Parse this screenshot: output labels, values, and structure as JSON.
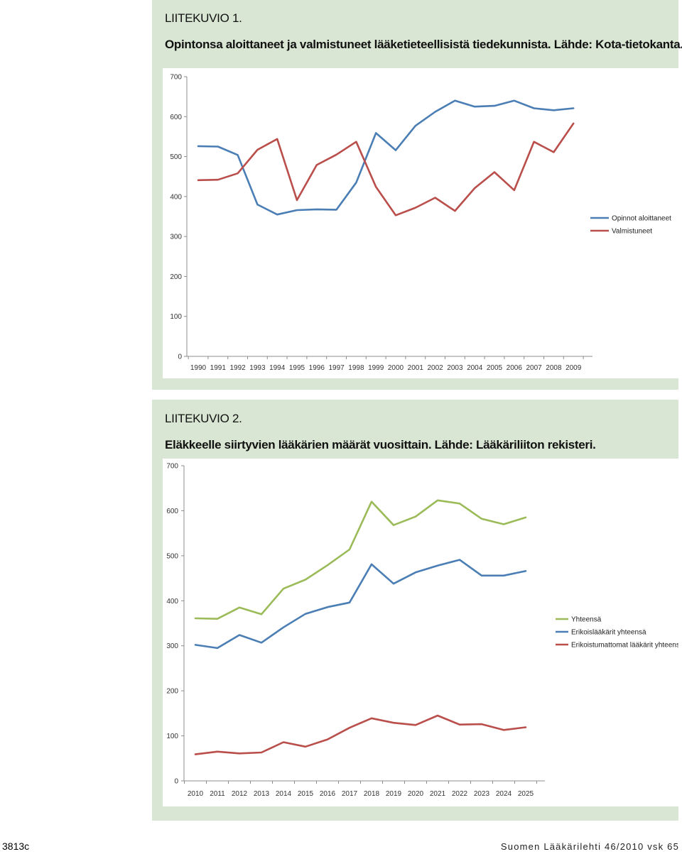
{
  "figures": [
    {
      "label": "LIITEKUVIO 1.",
      "caption": "Opintonsa aloittaneet ja valmistuneet lääketieteellisistä tiedekunnista. Lähde: Kota-tietokanta."
    },
    {
      "label": "LIITEKUVIO 2.",
      "caption": "Eläkkeelle siirtyvien lääkärien määrät vuosittain. Lähde: Lääkäriliiton rekisteri."
    }
  ],
  "chart_data": [
    {
      "type": "line",
      "title": "",
      "xlabel": "",
      "ylabel": "",
      "categories": [
        "1990",
        "1991",
        "1992",
        "1993",
        "1994",
        "1995",
        "1996",
        "1997",
        "1998",
        "1999",
        "2000",
        "2001",
        "2002",
        "2003",
        "2004",
        "2005",
        "2006",
        "2007",
        "2008",
        "2009"
      ],
      "ylim": [
        0,
        700
      ],
      "yticks": [
        "0",
        "100",
        "200",
        "300",
        "400",
        "500",
        "600",
        "700"
      ],
      "grid": false,
      "legend_position": "right",
      "series": [
        {
          "name": "Opinnot aloittaneet",
          "color": "#4a7eb4",
          "values": [
            526,
            525,
            504,
            380,
            355,
            366,
            368,
            367,
            435,
            559,
            516,
            577,
            612,
            640,
            625,
            627,
            640,
            621,
            616,
            621
          ]
        },
        {
          "name": "Valmistuneet",
          "color": "#b94e4b",
          "values": [
            441,
            442,
            458,
            517,
            544,
            391,
            479,
            505,
            537,
            424,
            353,
            372,
            397,
            364,
            421,
            461,
            416,
            537,
            511,
            583
          ]
        }
      ]
    },
    {
      "type": "line",
      "title": "",
      "xlabel": "",
      "ylabel": "",
      "categories": [
        "2010",
        "2011",
        "2012",
        "2013",
        "2014",
        "2015",
        "2016",
        "2017",
        "2018",
        "2019",
        "2020",
        "2021",
        "2022",
        "2023",
        "2024",
        "2025"
      ],
      "ylim": [
        0,
        700
      ],
      "yticks": [
        "0",
        "100",
        "200",
        "300",
        "400",
        "500",
        "600",
        "700"
      ],
      "grid": false,
      "legend_position": "right",
      "series": [
        {
          "name": "Yhteensä",
          "color": "#9bbb59",
          "values": [
            361,
            360,
            385,
            370,
            427,
            447,
            479,
            514,
            620,
            568,
            587,
            623,
            616,
            582,
            570,
            585
          ]
        },
        {
          "name": "Erikoislääkärit yhteensä",
          "color": "#4a7eb4",
          "values": [
            302,
            295,
            324,
            307,
            341,
            371,
            386,
            396,
            481,
            438,
            463,
            478,
            491,
            456,
            456,
            466
          ]
        },
        {
          "name": "Erikoistumattomat lääkärit yhteensä",
          "color": "#b94e4b",
          "values": [
            59,
            65,
            61,
            63,
            86,
            76,
            92,
            118,
            139,
            129,
            124,
            145,
            125,
            126,
            113,
            119
          ]
        }
      ]
    }
  ],
  "footer": {
    "page_code": "3813c",
    "publication": "Suomen Lääkärilehti 46/2010 vsk 65"
  }
}
